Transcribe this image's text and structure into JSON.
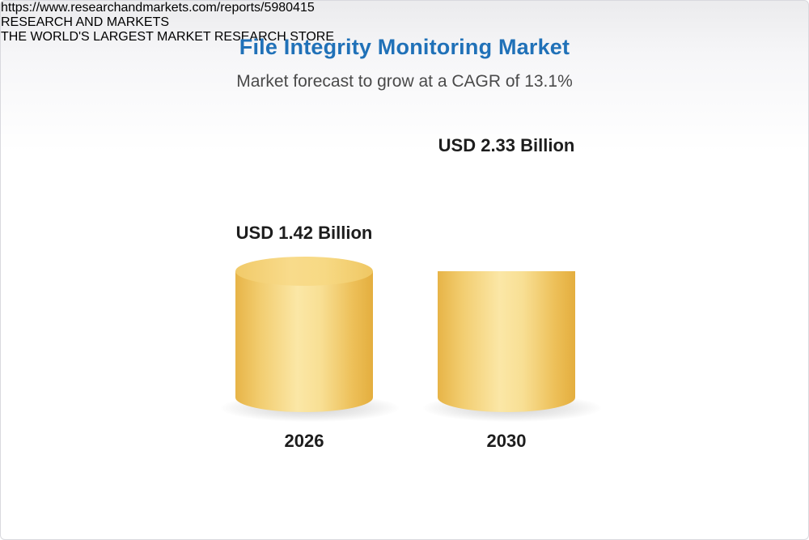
{
  "page": {
    "title": "File Integrity Monitoring Market",
    "subtitle": "Market forecast to grow at a CAGR of 13.1%",
    "footer_url": "https://www.researchandmarkets.com/reports/5980415",
    "logo": {
      "word_research": "RESEARCH",
      "word_and": "AND",
      "word_markets": "MARKETS",
      "tagline": "THE WORLD'S LARGEST MARKET RESEARCH STORE"
    }
  },
  "chart_data": {
    "type": "bar",
    "title": "File Integrity Monitoring Market",
    "subtitle": "Market forecast to grow at a CAGR of 13.1%",
    "categories": [
      "2026",
      "2030"
    ],
    "values": [
      1.42,
      2.33
    ],
    "value_labels": [
      "USD 1.42 Billion",
      "USD 2.33 Billion"
    ],
    "unit": "USD Billion",
    "cagr_percent": 13.1,
    "ylim": [
      0,
      2.5
    ],
    "grid": false,
    "legend": false,
    "bar_style": "3d-cylinder",
    "colors": {
      "base_bar": "#f5cf6e",
      "growth_segment": "#5a8cb7",
      "title_text": "#2071b8",
      "label_text": "#1d1d1d"
    },
    "notes": "2030 cylinder shows base value in gold (equal to 2026 height) with growth portion in blue on top"
  }
}
